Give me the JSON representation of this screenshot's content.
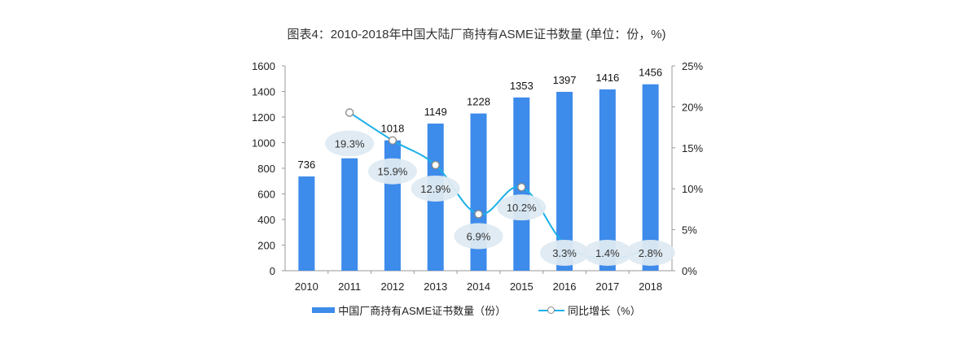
{
  "chart_data": {
    "type": "bar",
    "title": "图表4：2010-2018年中国大陆厂商持有ASME证书数量 (单位：份，%)",
    "categories": [
      "2010",
      "2011",
      "2012",
      "2013",
      "2014",
      "2015",
      "2016",
      "2017",
      "2018"
    ],
    "series": [
      {
        "name": "中国厂商持有ASME证书数量（份）",
        "type": "bar",
        "axis": "left",
        "color": "#3d8bea",
        "values": [
          736,
          878,
          1018,
          1149,
          1228,
          1353,
          1397,
          1416,
          1456
        ],
        "labels": [
          "736",
          "",
          "1018",
          "1149",
          "1228",
          "1353",
          "1397",
          "1416",
          "1456"
        ]
      },
      {
        "name": "同比增长（%）",
        "type": "line",
        "axis": "right",
        "color": "#1ab0e8",
        "values": [
          null,
          19.3,
          15.9,
          12.9,
          6.9,
          10.2,
          3.3,
          1.4,
          2.8
        ],
        "labels": [
          "",
          "19.3%",
          "15.9%",
          "12.9%",
          "6.9%",
          "10.2%",
          "3.3%",
          "1.4%",
          "2.8%"
        ]
      }
    ],
    "left_axis": {
      "min": 0,
      "max": 1600,
      "ticks": [
        "0",
        "200",
        "400",
        "600",
        "800",
        "1000",
        "1200",
        "1400",
        "1600"
      ]
    },
    "right_axis": {
      "min": 0,
      "max": 25,
      "ticks": [
        "0%",
        "5%",
        "10%",
        "15%",
        "20%",
        "25%"
      ]
    },
    "xlabel": "",
    "ylabel": "",
    "grid": false,
    "legend_position": "bottom"
  },
  "legend": {
    "bar_label": "中国厂商持有ASME证书数量（份）",
    "line_label": "同比增长（%）"
  }
}
